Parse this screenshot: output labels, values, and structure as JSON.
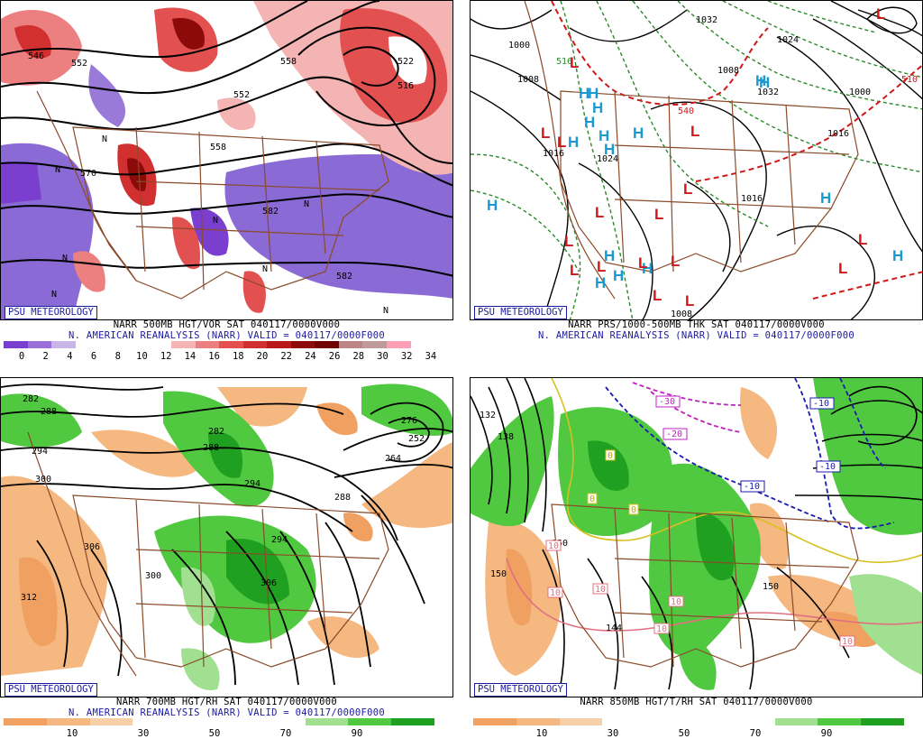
{
  "badge": "PSU METEOROLOGY",
  "panels": {
    "tl": {
      "caption1": "NARR 500MB HGT/VOR SAT 040117/0000V000",
      "caption2": "N. AMERICAN REANALYSIS (NARR) VALID = 040117/0000F000",
      "colorbar": {
        "colors": [
          "#7b3fd0",
          "#9a6fd8",
          "#c7b6e6",
          "#ffffff",
          "#ffffff",
          "#ffffff",
          "#ffffff",
          "#f4b4b4",
          "#ec8080",
          "#e25050",
          "#d23030",
          "#b81818",
          "#8c0a0a",
          "#700000",
          "#bd8585",
          "#c09a9a",
          "#ff9fb5",
          "#ffffff"
        ],
        "ticks": [
          "0",
          "2",
          "4",
          "6",
          "8",
          "10",
          "12",
          "14",
          "16",
          "18",
          "20",
          "22",
          "24",
          "26",
          "28",
          "30",
          "32",
          "34"
        ]
      },
      "contour_labels": [
        "546",
        "552",
        "558",
        "570",
        "582",
        "552",
        "516",
        "558",
        "522",
        "582"
      ],
      "letters": [
        "N",
        "N",
        "N",
        "N",
        "N",
        "N",
        "N",
        "N"
      ]
    },
    "tr": {
      "caption1": "NARR PRS/1000-500MB THK SAT 040117/0000V000",
      "caption2": "N. AMERICAN REANALYSIS (NARR) VALID = 040117/0000F000",
      "contour_labels": [
        "1000",
        "1008",
        "1016",
        "1024",
        "1032",
        "1024",
        "1032",
        "1016",
        "1016",
        "1008",
        "1000",
        "1008",
        "516",
        "540",
        "510"
      ],
      "highs": [
        "H",
        "H",
        "H",
        "H",
        "H",
        "H",
        "H",
        "H",
        "H",
        "H",
        "H",
        "H",
        "H",
        "H",
        "H",
        "H",
        "H"
      ],
      "lows": [
        "L",
        "L",
        "L",
        "L",
        "L",
        "L",
        "L",
        "L",
        "L",
        "L",
        "L",
        "L",
        "L",
        "L",
        "L",
        "L",
        "L"
      ]
    },
    "bl": {
      "caption1": "NARR 700MB HGT/RH SAT 040117/0000V000",
      "caption2": "N. AMERICAN REANALYSIS (NARR) VALID = 040117/0000F000",
      "colorbar": {
        "colors": [
          "#f0a060",
          "#f4b880",
          "#f8d0a8",
          "#ffffff",
          "#ffffff",
          "#ffffff",
          "#ffffff",
          "#a0e090",
          "#50c840",
          "#20a020"
        ],
        "ticks": [
          "10",
          "30",
          "50",
          "70",
          "90"
        ]
      },
      "contour_labels": [
        "282",
        "288",
        "294",
        "300",
        "306",
        "312",
        "300",
        "306",
        "294",
        "288",
        "282",
        "276",
        "252",
        "264",
        "288",
        "294"
      ]
    },
    "br": {
      "caption1": "NARR 850MB HGT/T/RH SAT 040117/0000V000",
      "caption2": "",
      "colorbar": {
        "colors": [
          "#f0a060",
          "#f4b880",
          "#f8d0a8",
          "#ffffff",
          "#ffffff",
          "#ffffff",
          "#ffffff",
          "#a0e090",
          "#50c840",
          "#20a020"
        ],
        "ticks": [
          "10",
          "30",
          "50",
          "70",
          "90"
        ]
      },
      "contour_labels": [
        "132",
        "138",
        "150",
        "150",
        "144",
        "150",
        "10",
        "10",
        "10",
        "10",
        "10",
        "10",
        "0",
        "0",
        "0"
      ],
      "temp_boxes": [
        "-10",
        "-10",
        "-10",
        "-20",
        "-30"
      ]
    }
  }
}
